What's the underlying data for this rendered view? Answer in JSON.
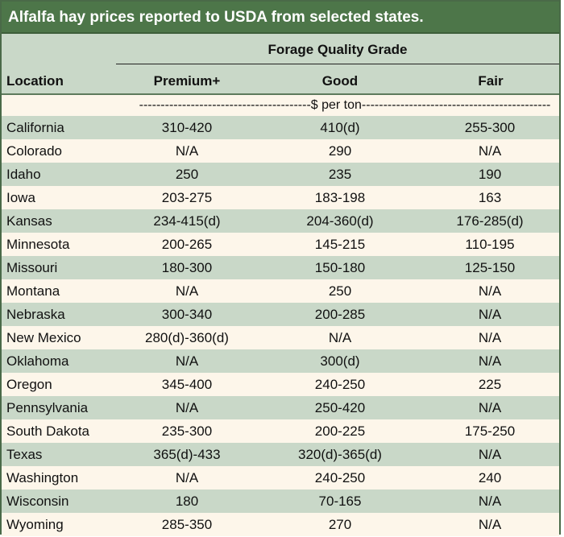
{
  "title": "Alfalfa hay prices reported to USDA from selected states.",
  "header": {
    "group": "Forage Quality Grade",
    "location": "Location",
    "premium": "Premium+",
    "good": "Good",
    "fair": "Fair"
  },
  "unit": "----------------------------------------$ per ton--------------------------------------------",
  "rows": [
    {
      "location": "California",
      "premium": "310-420",
      "good": "410(d)",
      "fair": "255-300"
    },
    {
      "location": "Colorado",
      "premium": "N/A",
      "good": "290",
      "fair": "N/A"
    },
    {
      "location": "Idaho",
      "premium": "250",
      "good": "235",
      "fair": "190"
    },
    {
      "location": "Iowa",
      "premium": "203-275",
      "good": "183-198",
      "fair": "163"
    },
    {
      "location": "Kansas",
      "premium": "234-415(d)",
      "good": "204-360(d)",
      "fair": "176-285(d)"
    },
    {
      "location": "Minnesota",
      "premium": "200-265",
      "good": "145-215",
      "fair": "110-195"
    },
    {
      "location": "Missouri",
      "premium": "180-300",
      "good": "150-180",
      "fair": "125-150"
    },
    {
      "location": "Montana",
      "premium": "N/A",
      "good": "250",
      "fair": "N/A"
    },
    {
      "location": "Nebraska",
      "premium": "300-340",
      "good": "200-285",
      "fair": "N/A"
    },
    {
      "location": "New Mexico",
      "premium": "280(d)-360(d)",
      "good": "N/A",
      "fair": "N/A"
    },
    {
      "location": "Oklahoma",
      "premium": "N/A",
      "good": "300(d)",
      "fair": "N/A"
    },
    {
      "location": "Oregon",
      "premium": "345-400",
      "good": "240-250",
      "fair": "225"
    },
    {
      "location": "Pennsylvania",
      "premium": "N/A",
      "good": "250-420",
      "fair": "N/A"
    },
    {
      "location": "South Dakota",
      "premium": "235-300",
      "good": "200-225",
      "fair": "175-250"
    },
    {
      "location": "Texas",
      "premium": "365(d)-433",
      "good": "320(d)-365(d)",
      "fair": "N/A"
    },
    {
      "location": "Washington",
      "premium": "N/A",
      "good": "240-250",
      "fair": "240"
    },
    {
      "location": "Wisconsin",
      "premium": "180",
      "good": "70-165",
      "fair": "N/A"
    },
    {
      "location": "Wyoming",
      "premium": "285-350",
      "good": "270",
      "fair": "N/A"
    }
  ]
}
